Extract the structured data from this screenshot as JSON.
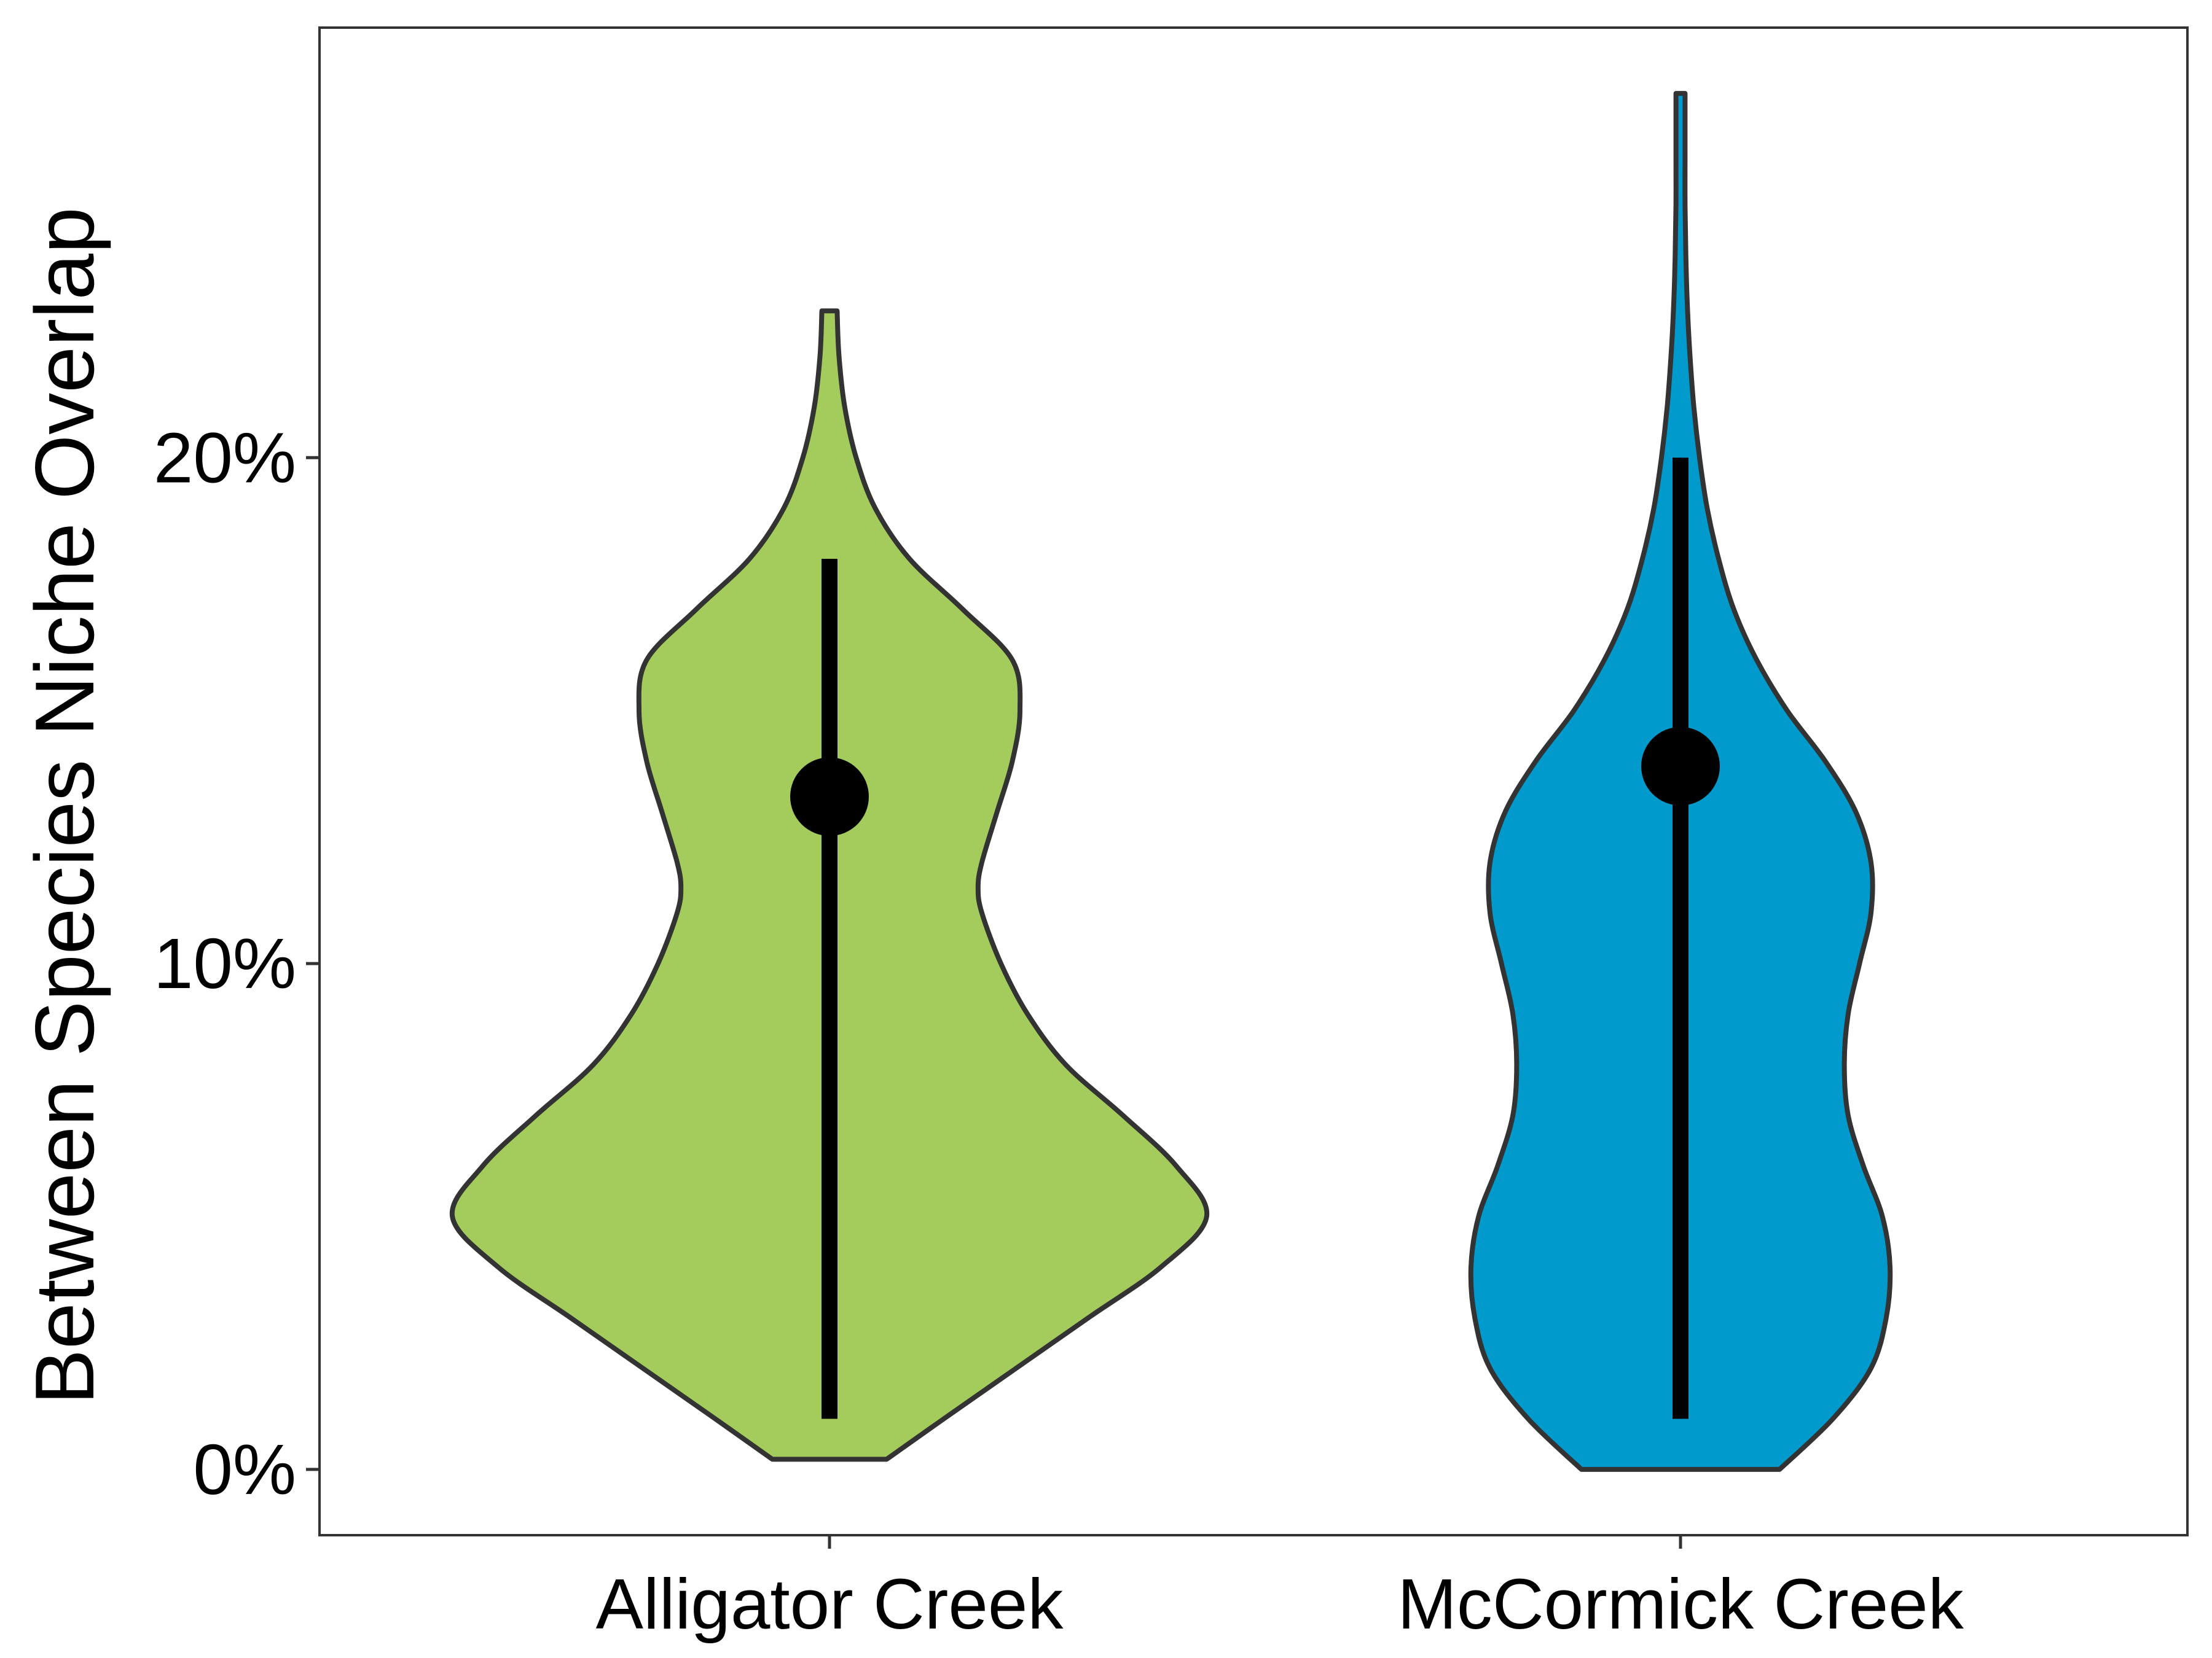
{
  "chart_data": {
    "type": "violin",
    "title": "",
    "xlabel": "",
    "ylabel": "Between Species Niche Overlap",
    "ylim": [
      -1.3,
      28.5
    ],
    "y_ticks": [
      0,
      10,
      20
    ],
    "y_tick_labels": [
      "0%",
      "10%",
      "20%"
    ],
    "categories": [
      "Alligator Creek",
      "McCormick Creek"
    ],
    "grid": false,
    "legend": "none",
    "colors": {
      "Alligator Creek": "#A3CC5C",
      "McCormick Creek": "#019ACD",
      "outline": "#333333",
      "summary": "#000000"
    },
    "violins": [
      {
        "name": "Alligator Creek",
        "y_min": 0.2,
        "y_max": 22.9,
        "density_profile": [
          [
            0.2,
            0.15
          ],
          [
            1.0,
            0.3
          ],
          [
            2.0,
            0.49
          ],
          [
            3.0,
            0.68
          ],
          [
            4.0,
            0.87
          ],
          [
            5.0,
            0.99
          ],
          [
            6.0,
            0.91
          ],
          [
            7.0,
            0.77
          ],
          [
            8.0,
            0.62
          ],
          [
            9.0,
            0.52
          ],
          [
            10.0,
            0.45
          ],
          [
            11.0,
            0.4
          ],
          [
            11.5,
            0.39
          ],
          [
            12.0,
            0.4
          ],
          [
            13.0,
            0.44
          ],
          [
            14.0,
            0.48
          ],
          [
            15.0,
            0.5
          ],
          [
            16.0,
            0.48
          ],
          [
            17.0,
            0.35
          ],
          [
            18.0,
            0.21
          ],
          [
            19.0,
            0.12
          ],
          [
            20.0,
            0.07
          ],
          [
            21.0,
            0.04
          ],
          [
            22.0,
            0.025
          ],
          [
            22.9,
            0.02
          ]
        ],
        "center": 13.3,
        "range": [
          1.0,
          18.0
        ]
      },
      {
        "name": "McCormick Creek",
        "y_min": 0.0,
        "y_max": 27.2,
        "density_profile": [
          [
            0.0,
            0.26
          ],
          [
            1.0,
            0.4
          ],
          [
            2.0,
            0.5
          ],
          [
            3.0,
            0.54
          ],
          [
            4.0,
            0.55
          ],
          [
            5.0,
            0.53
          ],
          [
            6.0,
            0.48
          ],
          [
            7.0,
            0.44
          ],
          [
            8.0,
            0.43
          ],
          [
            9.0,
            0.44
          ],
          [
            10.0,
            0.47
          ],
          [
            11.0,
            0.5
          ],
          [
            12.0,
            0.5
          ],
          [
            13.0,
            0.46
          ],
          [
            14.0,
            0.38
          ],
          [
            15.0,
            0.28
          ],
          [
            16.0,
            0.2
          ],
          [
            17.0,
            0.14
          ],
          [
            18.0,
            0.1
          ],
          [
            19.0,
            0.07
          ],
          [
            20.0,
            0.05
          ],
          [
            21.0,
            0.035
          ],
          [
            22.0,
            0.025
          ],
          [
            23.0,
            0.018
          ],
          [
            24.0,
            0.014
          ],
          [
            25.0,
            0.012
          ],
          [
            26.0,
            0.012
          ],
          [
            27.2,
            0.012
          ]
        ],
        "center": 13.9,
        "range": [
          1.0,
          20.0
        ]
      }
    ]
  }
}
